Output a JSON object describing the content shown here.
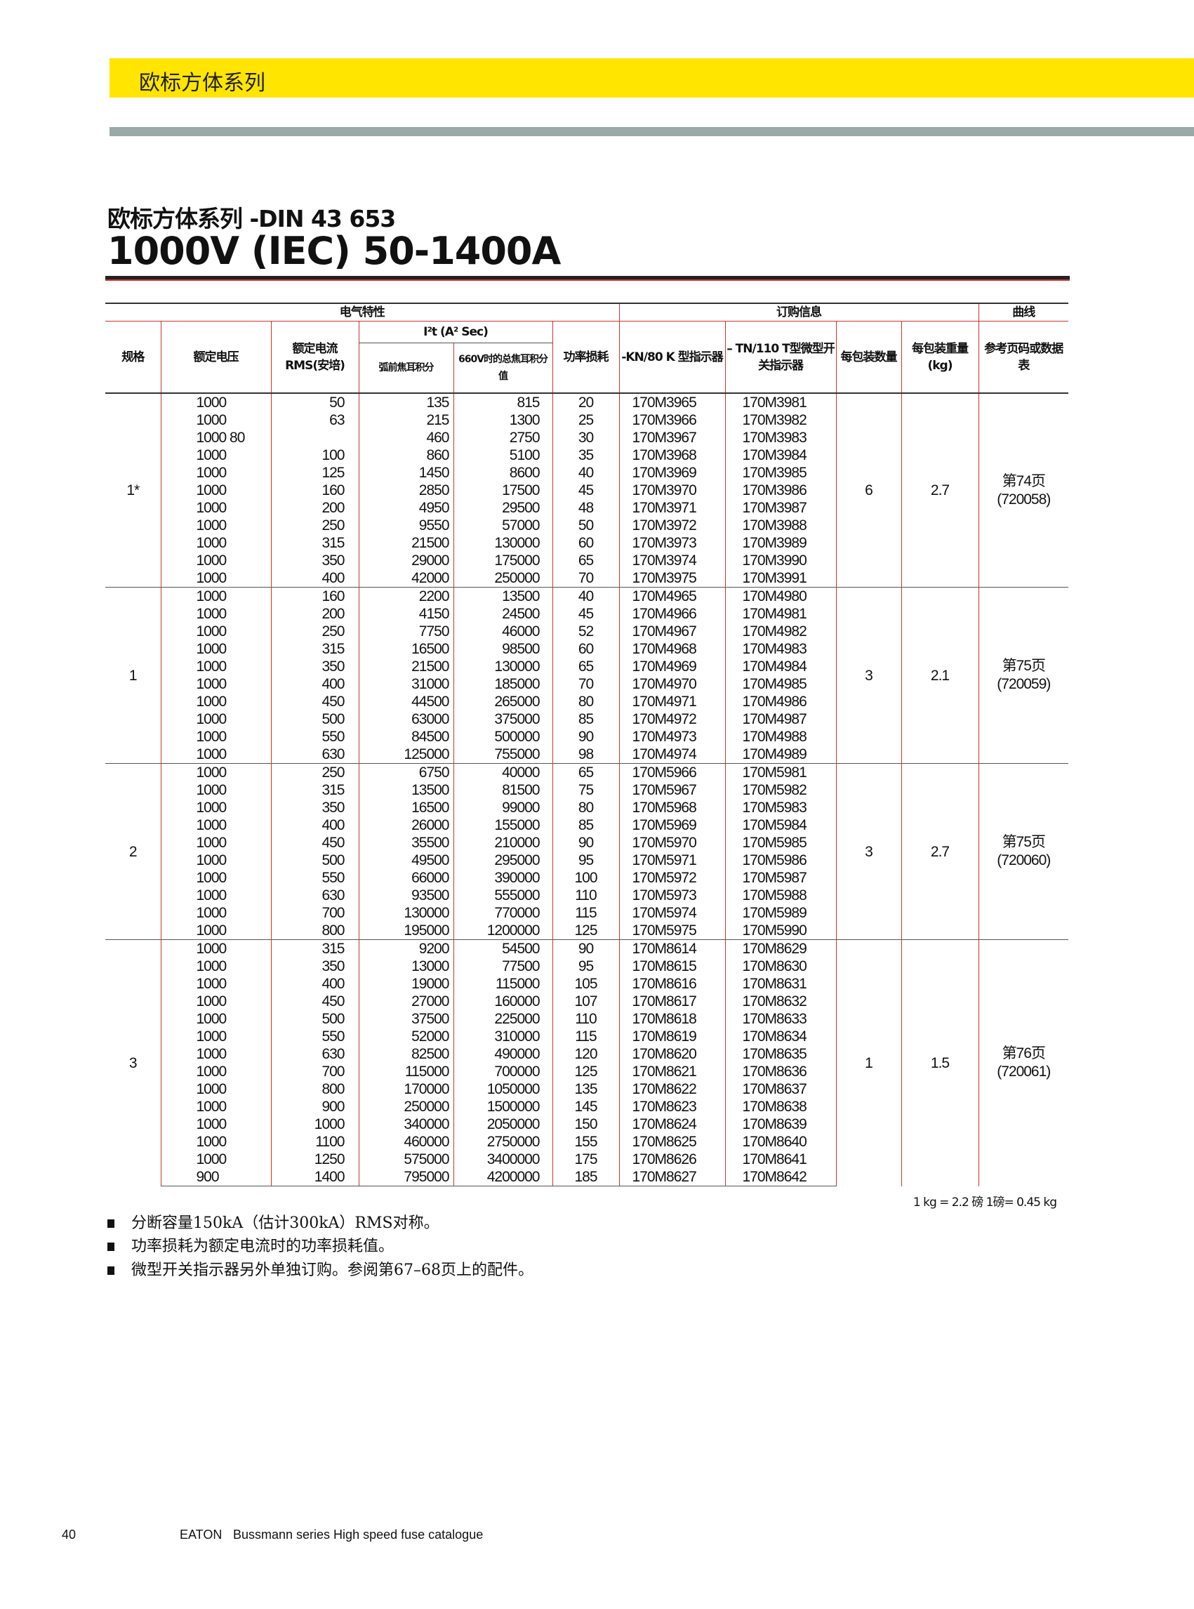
{
  "banner": "欧标方体系列",
  "subtitle": "欧标方体系列 -DIN 43 653",
  "title": "1000V (IEC)  50-1400A",
  "header": {
    "electrical": "电气特性",
    "ordering": "订购信息",
    "curves": "曲线",
    "size": "规格",
    "voltage": "额定电压",
    "current": "额定电流 RMS(安培)",
    "i2t": "I²t (A² Sec)",
    "prearc": "弧前焦耳积分",
    "total": "660V时的总焦耳积分值",
    "watts": "功率损耗",
    "kn": "-KN/80 K 型指示器",
    "tn": "– TN/110 T型微型开关指示器",
    "pack": "每包装数量",
    "weight": "每包装重量(kg)",
    "ref": "参考页码或数据表"
  },
  "groups": [
    {
      "size": "1*",
      "pack": "6",
      "weight": "2.7",
      "ref": "第74页 (720058)",
      "rows": [
        [
          "1000",
          "50",
          "135",
          "815",
          "20",
          "170M3965",
          "170M3981"
        ],
        [
          "1000",
          "63",
          "215",
          "1300",
          "25",
          "170M3966",
          "170M3982"
        ],
        [
          "1000 80",
          "",
          "460",
          "2750",
          "30",
          "170M3967",
          "170M3983"
        ],
        [
          "1000",
          "100",
          "860",
          "5100",
          "35",
          "170M3968",
          "170M3984"
        ],
        [
          "1000",
          "125",
          "1450",
          "8600",
          "40",
          "170M3969",
          "170M3985"
        ],
        [
          "1000",
          "160",
          "2850",
          "17500",
          "45",
          "170M3970",
          "170M3986"
        ],
        [
          "1000",
          "200",
          "4950",
          "29500",
          "48",
          "170M3971",
          "170M3987"
        ],
        [
          "1000",
          "250",
          "9550",
          "57000",
          "50",
          "170M3972",
          "170M3988"
        ],
        [
          "1000",
          "315",
          "21500",
          "130000",
          "60",
          "170M3973",
          "170M3989"
        ],
        [
          "1000",
          "350",
          "29000",
          "175000",
          "65",
          "170M3974",
          "170M3990"
        ],
        [
          "1000",
          "400",
          "42000",
          "250000",
          "70",
          "170M3975",
          "170M3991"
        ]
      ]
    },
    {
      "size": "1",
      "pack": "3",
      "weight": "2.1",
      "ref": "第75页 (720059)",
      "rows": [
        [
          "1000",
          "160",
          "2200",
          "13500",
          "40",
          "170M4965",
          "170M4980"
        ],
        [
          "1000",
          "200",
          "4150",
          "24500",
          "45",
          "170M4966",
          "170M4981"
        ],
        [
          "1000",
          "250",
          "7750",
          "46000",
          "52",
          "170M4967",
          "170M4982"
        ],
        [
          "1000",
          "315",
          "16500",
          "98500",
          "60",
          "170M4968",
          "170M4983"
        ],
        [
          "1000",
          "350",
          "21500",
          "130000",
          "65",
          "170M4969",
          "170M4984"
        ],
        [
          "1000",
          "400",
          "31000",
          "185000",
          "70",
          "170M4970",
          "170M4985"
        ],
        [
          "1000",
          "450",
          "44500",
          "265000",
          "80",
          "170M4971",
          "170M4986"
        ],
        [
          "1000",
          "500",
          "63000",
          "375000",
          "85",
          "170M4972",
          "170M4987"
        ],
        [
          "1000",
          "550",
          "84500",
          "500000",
          "90",
          "170M4973",
          "170M4988"
        ],
        [
          "1000",
          "630",
          "125000",
          "755000",
          "98",
          "170M4974",
          "170M4989"
        ]
      ]
    },
    {
      "size": "2",
      "pack": "3",
      "weight": "2.7",
      "ref": "第75页 (720060)",
      "rows": [
        [
          "1000",
          "250",
          "6750",
          "40000",
          "65",
          "170M5966",
          "170M5981"
        ],
        [
          "1000",
          "315",
          "13500",
          "81500",
          "75",
          "170M5967",
          "170M5982"
        ],
        [
          "1000",
          "350",
          "16500",
          "99000",
          "80",
          "170M5968",
          "170M5983"
        ],
        [
          "1000",
          "400",
          "26000",
          "155000",
          "85",
          "170M5969",
          "170M5984"
        ],
        [
          "1000",
          "450",
          "35500",
          "210000",
          "90",
          "170M5970",
          "170M5985"
        ],
        [
          "1000",
          "500",
          "49500",
          "295000",
          "95",
          "170M5971",
          "170M5986"
        ],
        [
          "1000",
          "550",
          "66000",
          "390000",
          "100",
          "170M5972",
          "170M5987"
        ],
        [
          "1000",
          "630",
          "93500",
          "555000",
          "110",
          "170M5973",
          "170M5988"
        ],
        [
          "1000",
          "700",
          "130000",
          "770000",
          "115",
          "170M5974",
          "170M5989"
        ],
        [
          "1000",
          "800",
          "195000",
          "1200000",
          "125",
          "170M5975",
          "170M5990"
        ]
      ]
    },
    {
      "size": "3",
      "pack": "1",
      "weight": "1.5",
      "ref": "第76页 (720061)",
      "rows": [
        [
          "1000",
          "315",
          "9200",
          "54500",
          "90",
          "170M8614",
          "170M8629"
        ],
        [
          "1000",
          "350",
          "13000",
          "77500",
          "95",
          "170M8615",
          "170M8630"
        ],
        [
          "1000",
          "400",
          "19000",
          "115000",
          "105",
          "170M8616",
          "170M8631"
        ],
        [
          "1000",
          "450",
          "27000",
          "160000",
          "107",
          "170M8617",
          "170M8632"
        ],
        [
          "1000",
          "500",
          "37500",
          "225000",
          "110",
          "170M8618",
          "170M8633"
        ],
        [
          "1000",
          "550",
          "52000",
          "310000",
          "115",
          "170M8619",
          "170M8634"
        ],
        [
          "1000",
          "630",
          "82500",
          "490000",
          "120",
          "170M8620",
          "170M8635"
        ],
        [
          "1000",
          "700",
          "115000",
          "700000",
          "125",
          "170M8621",
          "170M8636"
        ],
        [
          "1000",
          "800",
          "170000",
          "1050000",
          "135",
          "170M8622",
          "170M8637"
        ],
        [
          "1000",
          "900",
          "250000",
          "1500000",
          "145",
          "170M8623",
          "170M8638"
        ],
        [
          "1000",
          "1000",
          "340000",
          "2050000",
          "150",
          "170M8624",
          "170M8639"
        ],
        [
          "1000",
          "1100",
          "460000",
          "2750000",
          "155",
          "170M8625",
          "170M8640"
        ],
        [
          "1000",
          "1250",
          "575000",
          "3400000",
          "175",
          "170M8626",
          "170M8641"
        ],
        [
          "900",
          "1400",
          "795000",
          "4200000",
          "185",
          "170M8627",
          "170M8642"
        ]
      ]
    }
  ],
  "units": "1 kg = 2.2 磅   1磅= 0.45 kg",
  "notes": [
    "分断容量150kA（估计300kA）RMS对称。",
    "功率损耗为额定电流时的功率损耗值。",
    "微型开关指示器另外单独订购。参阅第67–68页上的配件。"
  ],
  "footer": {
    "page": "40",
    "brand": "EATON",
    "text": "Bussmann series High speed fuse catalogue"
  }
}
